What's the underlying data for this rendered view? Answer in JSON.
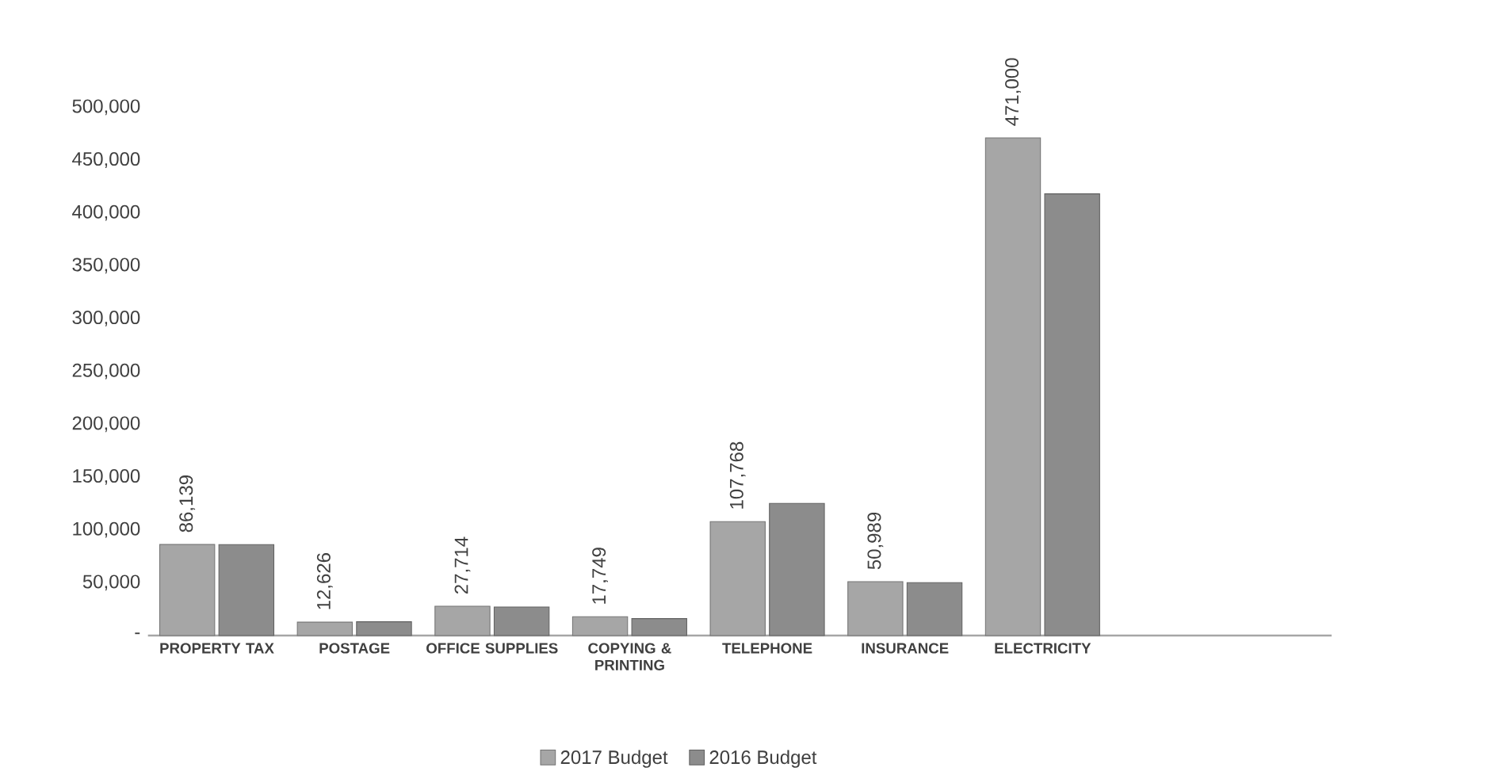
{
  "chart_data": {
    "type": "bar",
    "categories": [
      "PROPERTY TAX",
      "POSTAGE",
      "OFFICE SUPPLIES",
      "COPYING & PRINTING",
      "TELEPHONE",
      "INSURANCE",
      "ELECTRICITY"
    ],
    "series": [
      {
        "name": "2017 Budget",
        "color": "#a6a6a6",
        "values": [
          86139,
          12626,
          27714,
          17749,
          107768,
          50989,
          471000
        ],
        "value_labels": [
          "86,139",
          "12,626",
          "27,714",
          "17,749",
          "107,768",
          "50,989",
          "471,000"
        ]
      },
      {
        "name": "2016 Budget",
        "color": "#8c8c8c",
        "values": [
          86000,
          13000,
          27000,
          16000,
          125000,
          50000,
          418000
        ]
      }
    ],
    "ylim": [
      0,
      500000
    ],
    "yticks": [
      {
        "value": 0,
        "label": "-"
      },
      {
        "value": 50000,
        "label": "50,000"
      },
      {
        "value": 100000,
        "label": "100,000"
      },
      {
        "value": 150000,
        "label": "150,000"
      },
      {
        "value": 200000,
        "label": "200,000"
      },
      {
        "value": 250000,
        "label": "250,000"
      },
      {
        "value": 300000,
        "label": "300,000"
      },
      {
        "value": 350000,
        "label": "350,000"
      },
      {
        "value": 400000,
        "label": "400,000"
      },
      {
        "value": 450000,
        "label": "450,000"
      },
      {
        "value": 500000,
        "label": "500,000"
      }
    ],
    "grid": false,
    "legend": "bottom"
  }
}
